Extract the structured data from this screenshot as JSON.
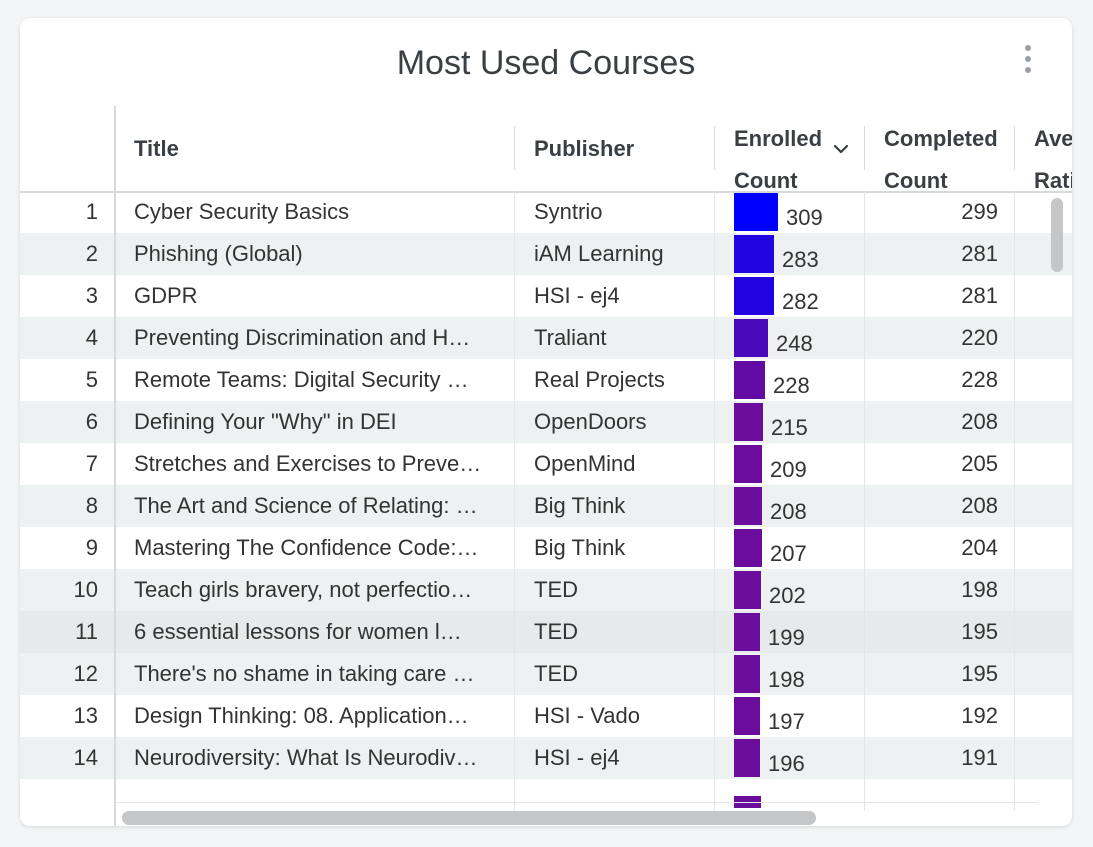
{
  "title": "Most Used Courses",
  "columns": {
    "title": "Title",
    "publisher": "Publisher",
    "enrolled_line1": "Enrolled",
    "enrolled_line2": "Count",
    "completed_line1": "Completed",
    "completed_line2": "Count",
    "rating_line1": "Ave",
    "rating_line2": "Rati"
  },
  "bar_colors": {
    "high": "#0000ff",
    "low": "#6a0d9c"
  },
  "rows": [
    {
      "n": "1",
      "title": "Cyber Security Basics",
      "publisher": "Syntrio",
      "enrolled": 309,
      "completed": "299"
    },
    {
      "n": "2",
      "title": "Phishing (Global)",
      "publisher": "iAM Learning",
      "enrolled": 283,
      "completed": "281"
    },
    {
      "n": "3",
      "title": "GDPR",
      "publisher": "HSI - ej4",
      "enrolled": 282,
      "completed": "281"
    },
    {
      "n": "4",
      "title": "Preventing Discrimination and H…",
      "publisher": "Traliant",
      "enrolled": 248,
      "completed": "220"
    },
    {
      "n": "5",
      "title": "Remote Teams: Digital Security …",
      "publisher": "Real Projects",
      "enrolled": 228,
      "completed": "228"
    },
    {
      "n": "6",
      "title": "Defining Your \"Why\" in DEI",
      "publisher": "OpenDoors",
      "enrolled": 215,
      "completed": "208"
    },
    {
      "n": "7",
      "title": "Stretches and Exercises to Preve…",
      "publisher": "OpenMind",
      "enrolled": 209,
      "completed": "205"
    },
    {
      "n": "8",
      "title": "The Art and Science of Relating: …",
      "publisher": "Big Think",
      "enrolled": 208,
      "completed": "208"
    },
    {
      "n": "9",
      "title": "Mastering The Confidence Code:…",
      "publisher": "Big Think",
      "enrolled": 207,
      "completed": "204"
    },
    {
      "n": "10",
      "title": "Teach girls bravery, not perfectio…",
      "publisher": "TED",
      "enrolled": 202,
      "completed": "198"
    },
    {
      "n": "11",
      "title": "6 essential lessons for women l…",
      "publisher": "TED",
      "enrolled": 199,
      "completed": "195"
    },
    {
      "n": "12",
      "title": "There's no shame in taking care …",
      "publisher": "TED",
      "enrolled": 198,
      "completed": "195"
    },
    {
      "n": "13",
      "title": "Design Thinking: 08. Application…",
      "publisher": "HSI - Vado",
      "enrolled": 197,
      "completed": "192"
    },
    {
      "n": "14",
      "title": "Neurodiversity: What Is Neurodiv…",
      "publisher": "HSI - ej4",
      "enrolled": 196,
      "completed": "191"
    }
  ]
}
